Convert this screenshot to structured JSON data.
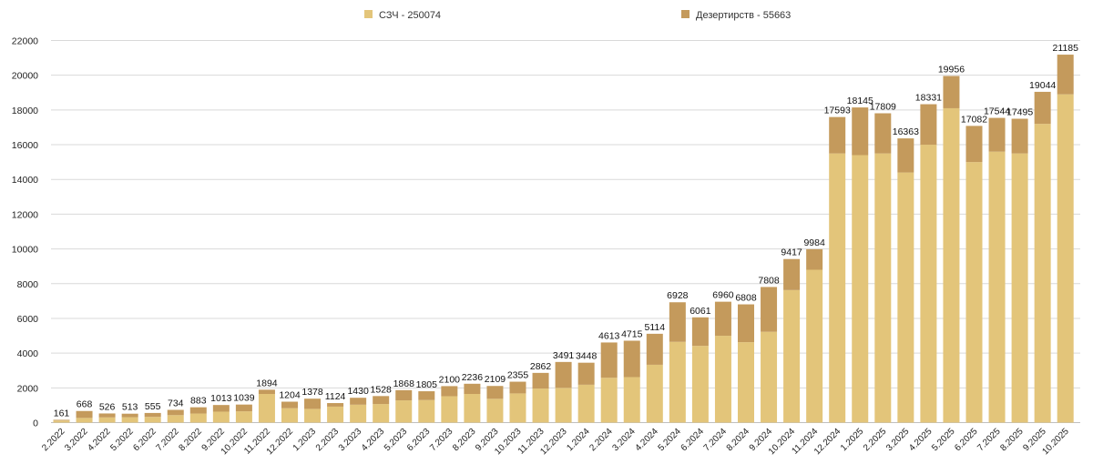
{
  "chart_data": {
    "type": "bar",
    "stacked": true,
    "title": "",
    "xlabel": "",
    "ylabel": "",
    "ylim": [
      0,
      22000
    ],
    "yticks": [
      0,
      2000,
      4000,
      6000,
      8000,
      10000,
      12000,
      14000,
      16000,
      18000,
      20000,
      22000
    ],
    "grid": true,
    "legend_position": "top-center",
    "legend": [
      {
        "name": "СЗЧ",
        "total_label": "250074",
        "color": "#e3c57a"
      },
      {
        "name": "Дезертирств",
        "total_label": "55663",
        "color": "#c49a5c"
      }
    ],
    "categories": [
      "2.2022",
      "3.2022",
      "4.2022",
      "5.2022",
      "6.2022",
      "7.2022",
      "8.2022",
      "9.2022",
      "10.2022",
      "11.2022",
      "12.2022",
      "1.2023",
      "2.2023",
      "3.2023",
      "4.2023",
      "5.2023",
      "6.2023",
      "7.2023",
      "8.2023",
      "9.2023",
      "10.2023",
      "11.2023",
      "12.2023",
      "1.2024",
      "2.2024",
      "3.2024",
      "4.2024",
      "5.2024",
      "6.2024",
      "7.2024",
      "8.2024",
      "9.2024",
      "10.2024",
      "11.2024",
      "12.2024",
      "1.2025",
      "2.2025",
      "3.2025",
      "4.2025",
      "5.2025",
      "6.2025",
      "7.2025",
      "8.2025",
      "9.2025",
      "10.2025"
    ],
    "series": [
      {
        "name": "СЗЧ",
        "values": [
          120,
          270,
          300,
          310,
          330,
          430,
          520,
          630,
          650,
          1650,
          830,
          790,
          920,
          1030,
          1070,
          1280,
          1300,
          1520,
          1650,
          1370,
          1680,
          1960,
          2000,
          2180,
          2580,
          2620,
          3330,
          4650,
          4420,
          5000,
          4630,
          5230,
          7630,
          8800,
          15500,
          15400,
          15500,
          14400,
          16000,
          18100,
          15000,
          15600,
          15500,
          17200,
          18900
        ]
      },
      {
        "name": "Дезертирств",
        "values": [
          41,
          398,
          226,
          203,
          225,
          304,
          363,
          383,
          389,
          244,
          374,
          588,
          204,
          400,
          458,
          588,
          505,
          580,
          586,
          739,
          675,
          902,
          1491,
          1268,
          2033,
          2095,
          1784,
          2278,
          1641,
          1960,
          2178,
          2578,
          1787,
          1184,
          2093,
          2745,
          2309,
          1963,
          2331,
          1856,
          2082,
          1944,
          1995,
          1844,
          2285
        ]
      }
    ],
    "totals": [
      161,
      668,
      526,
      513,
      555,
      734,
      883,
      1013,
      1039,
      1894,
      1204,
      1378,
      1124,
      1430,
      1528,
      1868,
      1805,
      2100,
      2236,
      2109,
      2355,
      2862,
      3491,
      3448,
      4613,
      4715,
      5114,
      6928,
      6061,
      6960,
      6808,
      7808,
      9417,
      9984,
      17593,
      18145,
      17809,
      16363,
      18331,
      19956,
      17082,
      17544,
      17495,
      19044,
      21185
    ]
  }
}
